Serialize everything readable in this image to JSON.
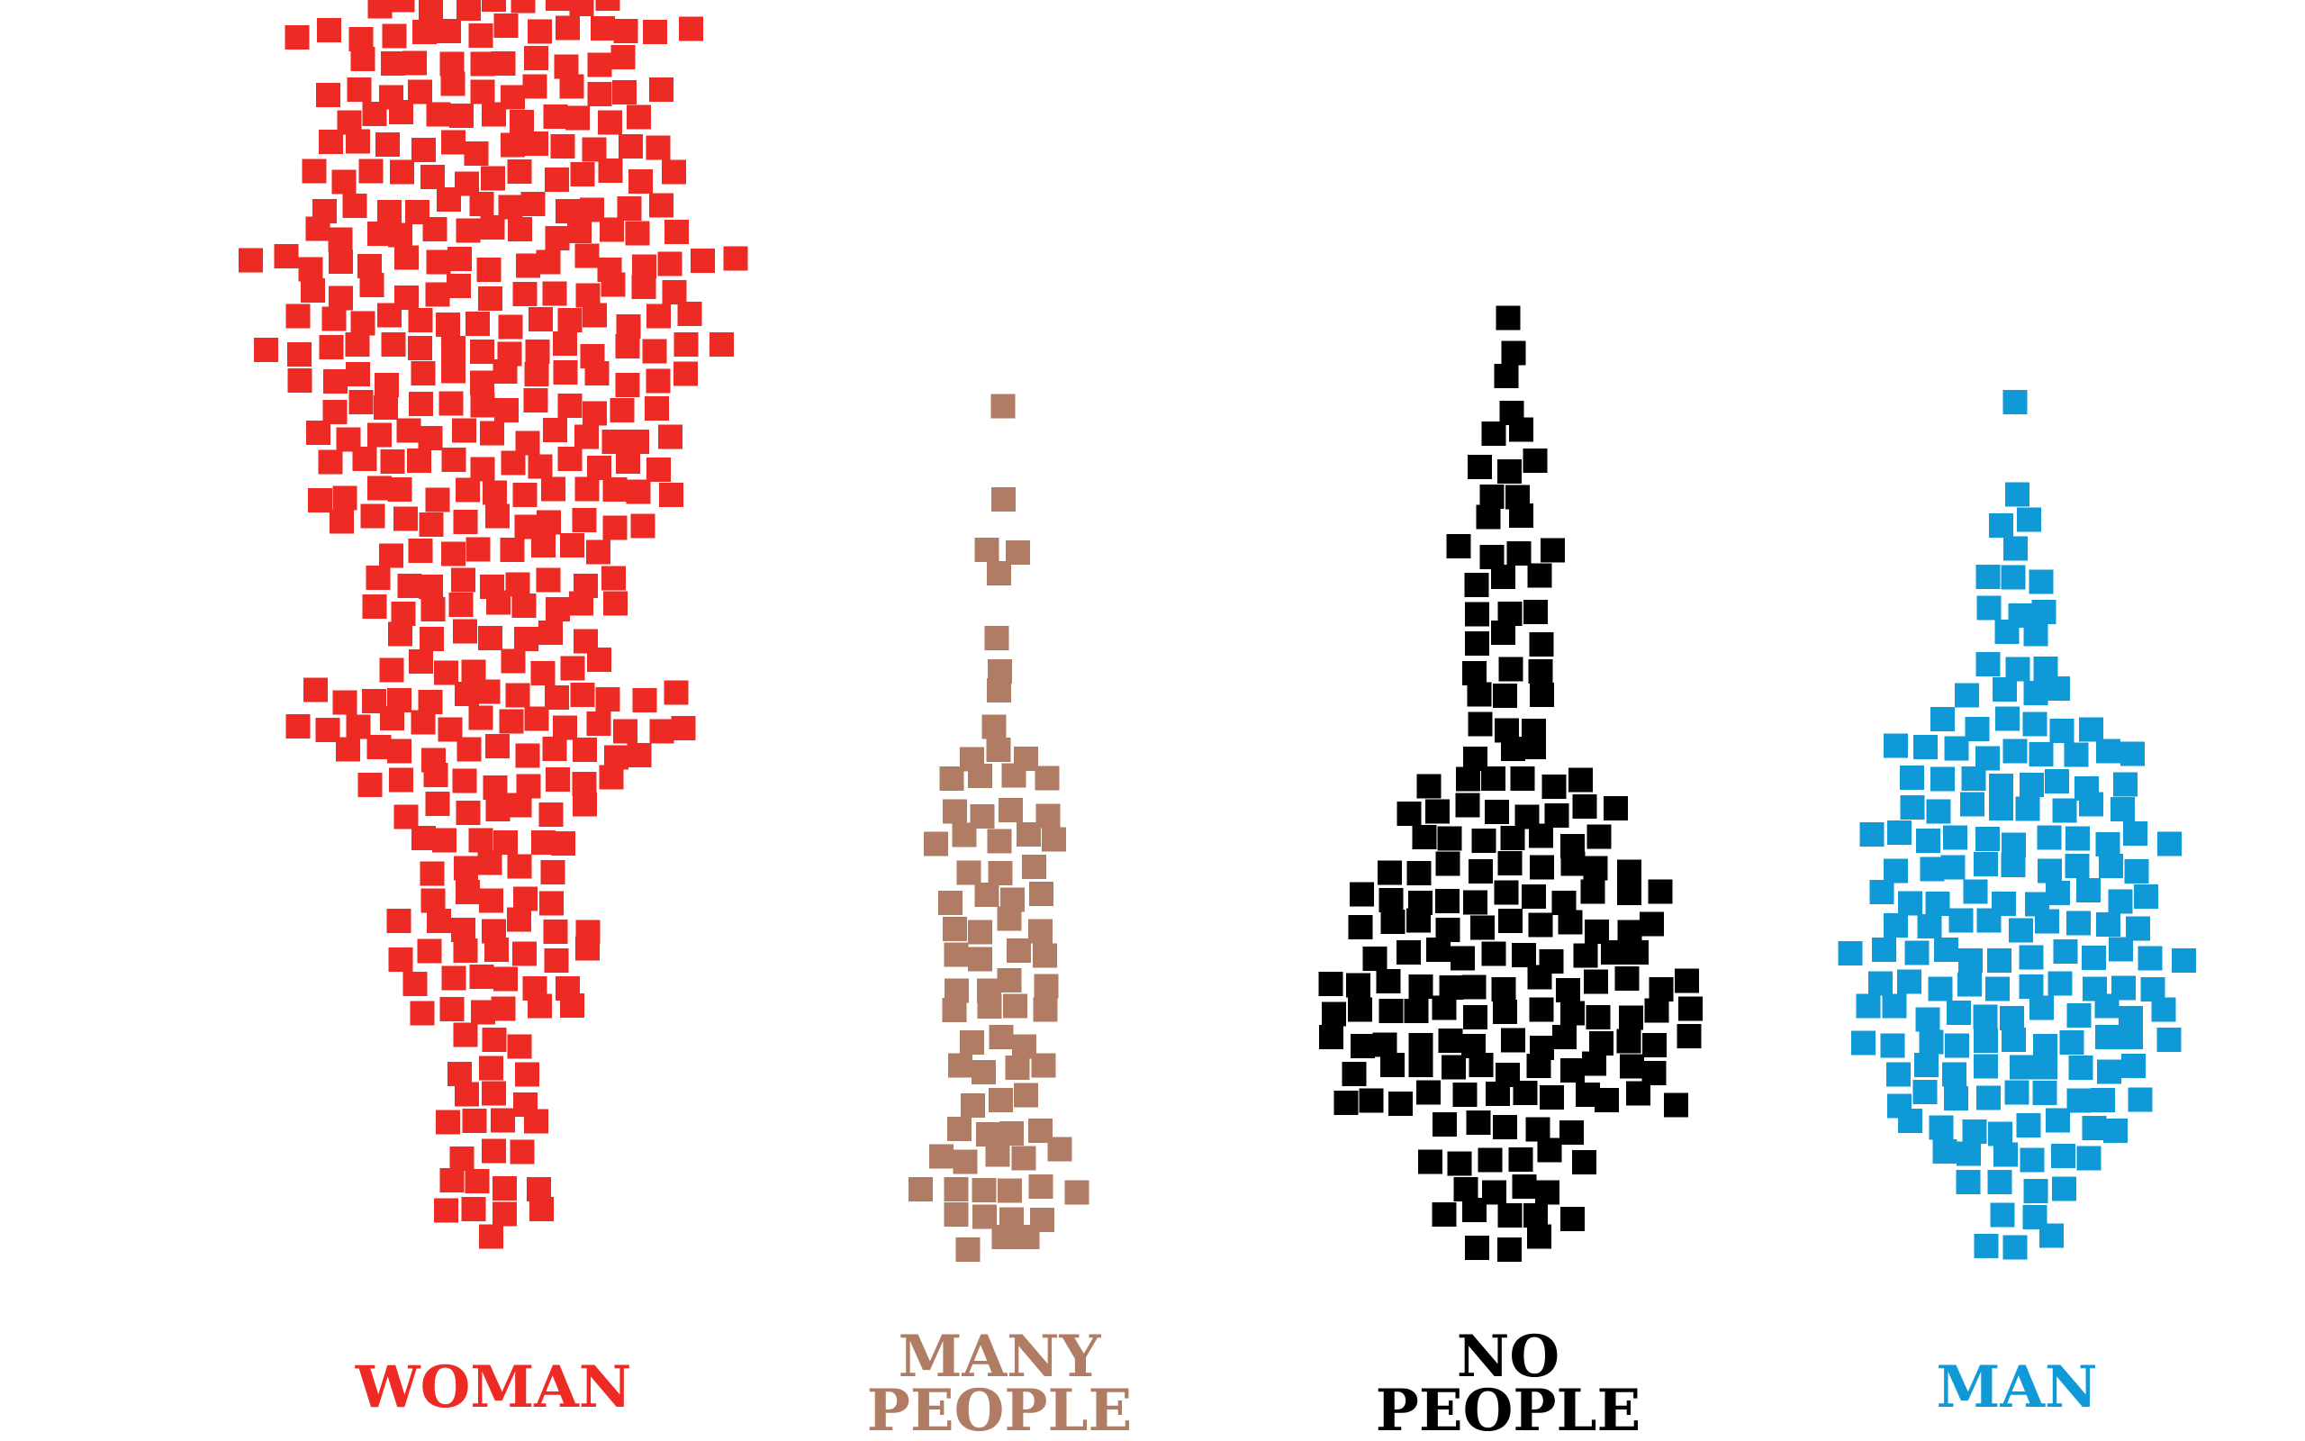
{
  "chart_data": {
    "type": "scatter",
    "subtype": "beeswarm",
    "title": "",
    "xlabel": "",
    "ylabel": "",
    "grid": false,
    "legend": "none",
    "categories": [
      {
        "label_lines": [
          "WOMAN"
        ],
        "color": "#ee2a24",
        "bins": [
          [
            0,
            1
          ],
          [
            1,
            4
          ],
          [
            2,
            4
          ],
          [
            3,
            3
          ],
          [
            4,
            4
          ],
          [
            5,
            3
          ],
          [
            6,
            3
          ],
          [
            7,
            3
          ],
          [
            8,
            6
          ],
          [
            9,
            6
          ],
          [
            10,
            7
          ],
          [
            11,
            7
          ],
          [
            12,
            5
          ],
          [
            13,
            5
          ],
          [
            14,
            6
          ],
          [
            15,
            7
          ],
          [
            16,
            9
          ],
          [
            17,
            11
          ],
          [
            18,
            14
          ],
          [
            19,
            13
          ],
          [
            20,
            8
          ],
          [
            21,
            7
          ],
          [
            22,
            9
          ],
          [
            23,
            9
          ],
          [
            24,
            8
          ],
          [
            25,
            11
          ],
          [
            26,
            13
          ],
          [
            27,
            12
          ],
          [
            28,
            13
          ],
          [
            29,
            12
          ],
          [
            30,
            14
          ],
          [
            31,
            16
          ],
          [
            32,
            14
          ],
          [
            33,
            13
          ],
          [
            34,
            17
          ],
          [
            35,
            13
          ],
          [
            36,
            12
          ],
          [
            37,
            13
          ],
          [
            38,
            12
          ],
          [
            39,
            11
          ],
          [
            40,
            12
          ],
          [
            41,
            10
          ],
          [
            42,
            14
          ],
          [
            43,
            9
          ]
        ]
      },
      {
        "label_lines": [
          "MANY",
          "PEOPLE"
        ],
        "color": "#b07c64",
        "bins": [
          [
            0,
            3
          ],
          [
            1,
            4
          ],
          [
            2,
            6
          ],
          [
            3,
            5
          ],
          [
            4,
            4
          ],
          [
            5,
            3
          ],
          [
            6,
            4
          ],
          [
            7,
            3
          ],
          [
            8,
            4
          ],
          [
            9,
            4
          ],
          [
            10,
            4
          ],
          [
            11,
            4
          ],
          [
            12,
            4
          ],
          [
            13,
            3
          ],
          [
            14,
            5
          ],
          [
            15,
            4
          ],
          [
            16,
            4
          ],
          [
            17,
            3
          ],
          [
            18,
            1
          ],
          [
            19,
            1
          ],
          [
            20,
            1
          ],
          [
            21,
            1
          ],
          [
            23,
            1
          ],
          [
            24,
            2
          ],
          [
            26,
            1
          ],
          [
            29,
            1
          ]
        ]
      },
      {
        "label_lines": [
          "NO",
          "PEOPLE"
        ],
        "color": "#000000",
        "bins": [
          [
            0,
            3
          ],
          [
            1,
            5
          ],
          [
            2,
            4
          ],
          [
            3,
            6
          ],
          [
            4,
            5
          ],
          [
            5,
            12
          ],
          [
            6,
            11
          ],
          [
            7,
            13
          ],
          [
            8,
            13
          ],
          [
            9,
            13
          ],
          [
            10,
            10
          ],
          [
            11,
            11
          ],
          [
            12,
            11
          ],
          [
            13,
            9
          ],
          [
            14,
            7
          ],
          [
            15,
            8
          ],
          [
            16,
            6
          ],
          [
            17,
            3
          ],
          [
            18,
            3
          ],
          [
            19,
            3
          ],
          [
            20,
            3
          ],
          [
            21,
            3
          ],
          [
            22,
            3
          ],
          [
            23,
            3
          ],
          [
            24,
            4
          ],
          [
            25,
            2
          ],
          [
            26,
            2
          ],
          [
            27,
            3
          ],
          [
            28,
            2
          ],
          [
            29,
            1
          ],
          [
            30,
            1
          ],
          [
            31,
            1
          ],
          [
            32,
            1
          ]
        ]
      },
      {
        "label_lines": [
          "MAN"
        ],
        "color": "#0f9ad7",
        "bins": [
          [
            0,
            3
          ],
          [
            1,
            2
          ],
          [
            2,
            4
          ],
          [
            3,
            6
          ],
          [
            4,
            8
          ],
          [
            5,
            9
          ],
          [
            6,
            9
          ],
          [
            7,
            11
          ],
          [
            8,
            11
          ],
          [
            9,
            10
          ],
          [
            10,
            12
          ],
          [
            11,
            9
          ],
          [
            12,
            10
          ],
          [
            13,
            9
          ],
          [
            14,
            11
          ],
          [
            15,
            8
          ],
          [
            16,
            8
          ],
          [
            17,
            9
          ],
          [
            18,
            6
          ],
          [
            19,
            4
          ],
          [
            20,
            3
          ],
          [
            21,
            2
          ],
          [
            22,
            3
          ],
          [
            23,
            3
          ],
          [
            24,
            1
          ],
          [
            25,
            2
          ],
          [
            26,
            1
          ],
          [
            29,
            1
          ]
        ]
      }
    ]
  }
}
